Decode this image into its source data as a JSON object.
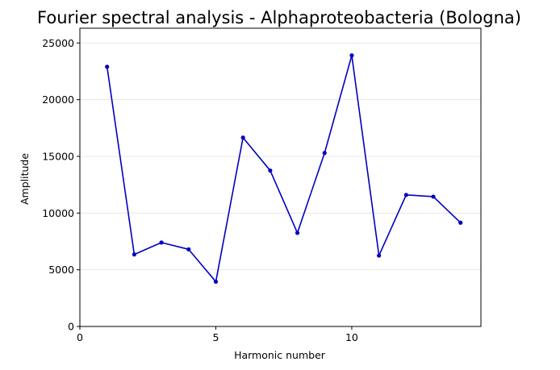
{
  "chart_data": {
    "type": "line",
    "title": "Fourier spectral analysis - Alphaproteobacteria (Bologna)",
    "xlabel": "Harmonic number",
    "ylabel": "Amplitude",
    "xlim": [
      0,
      14.75
    ],
    "ylim": [
      0,
      26300
    ],
    "xticks": [
      0,
      5,
      10
    ],
    "yticks": [
      0,
      5000,
      10000,
      15000,
      20000,
      25000
    ],
    "grid": "horizontal",
    "line_color": "#0000bf",
    "series": [
      {
        "x": [
          1,
          2,
          3,
          4,
          5,
          6,
          7,
          8,
          9,
          10,
          11,
          12,
          13,
          14
        ],
        "values": [
          22900,
          6350,
          7400,
          6800,
          3950,
          16650,
          13750,
          8250,
          15300,
          23900,
          6250,
          11600,
          11450,
          9150
        ]
      }
    ]
  }
}
